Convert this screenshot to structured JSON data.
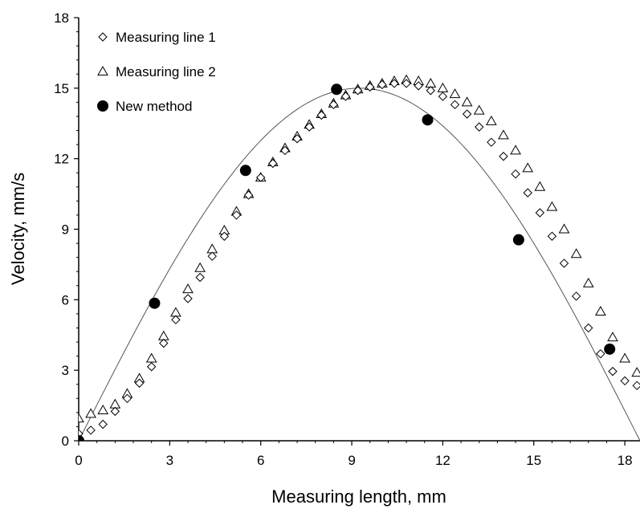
{
  "chart_data": {
    "type": "scatter",
    "title": "",
    "xlabel": "Measuring length, mm",
    "ylabel": "Velocity, mm/s",
    "xlim": [
      0,
      18.5
    ],
    "ylim": [
      0,
      18
    ],
    "xticks": [
      0,
      3,
      6,
      9,
      12,
      15,
      18
    ],
    "yticks": [
      0,
      3,
      6,
      9,
      12,
      15,
      18
    ],
    "grid": false,
    "legend_position": "top-left",
    "series": [
      {
        "name": "Measuring line 1",
        "marker": "diamond-open",
        "points": [
          [
            0.0,
            0.3
          ],
          [
            0.4,
            0.45
          ],
          [
            0.8,
            0.7
          ],
          [
            1.2,
            1.25
          ],
          [
            1.6,
            1.8
          ],
          [
            2.0,
            2.45
          ],
          [
            2.4,
            3.15
          ],
          [
            2.8,
            4.15
          ],
          [
            3.2,
            5.15
          ],
          [
            3.6,
            6.05
          ],
          [
            4.0,
            6.95
          ],
          [
            4.4,
            7.85
          ],
          [
            4.8,
            8.7
          ],
          [
            5.2,
            9.6
          ],
          [
            5.6,
            10.45
          ],
          [
            6.0,
            11.2
          ],
          [
            6.4,
            11.8
          ],
          [
            6.8,
            12.35
          ],
          [
            7.2,
            12.85
          ],
          [
            7.6,
            13.35
          ],
          [
            8.0,
            13.85
          ],
          [
            8.4,
            14.3
          ],
          [
            8.8,
            14.65
          ],
          [
            9.2,
            14.9
          ],
          [
            9.6,
            15.05
          ],
          [
            10.0,
            15.15
          ],
          [
            10.4,
            15.2
          ],
          [
            10.8,
            15.2
          ],
          [
            11.2,
            15.1
          ],
          [
            11.6,
            14.9
          ],
          [
            12.0,
            14.65
          ],
          [
            12.4,
            14.3
          ],
          [
            12.8,
            13.9
          ],
          [
            13.2,
            13.35
          ],
          [
            13.6,
            12.7
          ],
          [
            14.0,
            12.1
          ],
          [
            14.4,
            11.35
          ],
          [
            14.8,
            10.55
          ],
          [
            15.2,
            9.7
          ],
          [
            15.6,
            8.7
          ],
          [
            16.0,
            7.55
          ],
          [
            16.4,
            6.15
          ],
          [
            16.8,
            4.8
          ],
          [
            17.2,
            3.7
          ],
          [
            17.6,
            2.95
          ],
          [
            18.0,
            2.55
          ],
          [
            18.4,
            2.35
          ]
        ]
      },
      {
        "name": "Measuring line 2",
        "marker": "triangle-open",
        "points": [
          [
            0.0,
            0.95
          ],
          [
            0.4,
            1.15
          ],
          [
            0.8,
            1.3
          ],
          [
            1.2,
            1.55
          ],
          [
            1.6,
            2.0
          ],
          [
            2.0,
            2.65
          ],
          [
            2.4,
            3.5
          ],
          [
            2.8,
            4.45
          ],
          [
            3.2,
            5.45
          ],
          [
            3.6,
            6.45
          ],
          [
            4.0,
            7.35
          ],
          [
            4.4,
            8.15
          ],
          [
            4.8,
            8.95
          ],
          [
            5.2,
            9.75
          ],
          [
            5.6,
            10.5
          ],
          [
            6.0,
            11.2
          ],
          [
            6.4,
            11.85
          ],
          [
            6.8,
            12.45
          ],
          [
            7.2,
            12.95
          ],
          [
            7.6,
            13.45
          ],
          [
            8.0,
            13.9
          ],
          [
            8.4,
            14.35
          ],
          [
            8.8,
            14.7
          ],
          [
            9.2,
            14.95
          ],
          [
            9.6,
            15.1
          ],
          [
            10.0,
            15.2
          ],
          [
            10.4,
            15.3
          ],
          [
            10.8,
            15.35
          ],
          [
            11.2,
            15.3
          ],
          [
            11.6,
            15.2
          ],
          [
            12.0,
            15.0
          ],
          [
            12.4,
            14.75
          ],
          [
            12.8,
            14.4
          ],
          [
            13.2,
            14.05
          ],
          [
            13.6,
            13.6
          ],
          [
            14.0,
            13.0
          ],
          [
            14.4,
            12.35
          ],
          [
            14.8,
            11.6
          ],
          [
            15.2,
            10.8
          ],
          [
            15.6,
            9.95
          ],
          [
            16.0,
            9.0
          ],
          [
            16.4,
            7.95
          ],
          [
            16.8,
            6.7
          ],
          [
            17.2,
            5.5
          ],
          [
            17.6,
            4.4
          ],
          [
            18.0,
            3.5
          ],
          [
            18.4,
            2.9
          ]
        ]
      },
      {
        "name": "New method",
        "marker": "circle-filled",
        "points": [
          [
            0.0,
            0.0
          ],
          [
            2.5,
            5.85
          ],
          [
            5.5,
            11.5
          ],
          [
            8.5,
            14.95
          ],
          [
            11.5,
            13.65
          ],
          [
            14.5,
            8.55
          ],
          [
            17.5,
            3.9
          ]
        ]
      },
      {
        "name": "",
        "marker": "line",
        "curve": "y = 15 * sin(pi * x / 18.5)"
      }
    ]
  }
}
